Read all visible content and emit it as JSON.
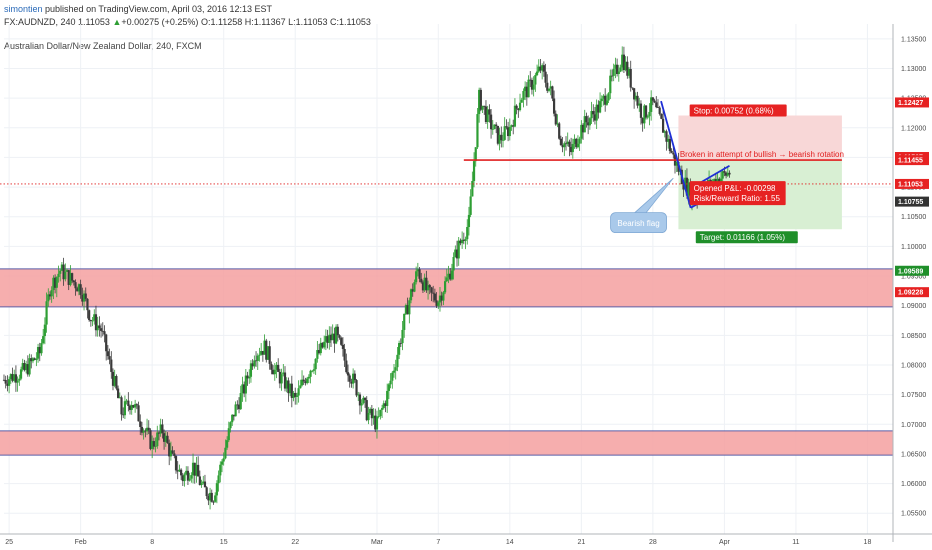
{
  "header": {
    "author": "simontien",
    "published": " published on TradingView.com, April 03, 2016 12:13 EST",
    "symbol": "FX:AUDNZD, 240",
    "last": "1.11053",
    "change_arrow": "▲",
    "change": "+0.00275 (+0.25%)",
    "ohlc": "O:1.11258 H:1.11367 L:1.11053 C:1.11053",
    "chart_title": "Australian Dollar/New Zealand Dollar, 240, FXCM"
  },
  "colors": {
    "up": "#2e9e34",
    "down": "#3a3a3a",
    "zone_fill": "#f4a0a0",
    "zone_edge": "#5b5ea6",
    "resistance": "#e02020",
    "flag": "#1f2fd6",
    "stop_fill": "#f8d7d7",
    "target_fill": "#d8efd3",
    "tag_red": "#e62222",
    "tag_green": "#1f8f2a",
    "tag_dark": "#333333",
    "callout": "#a9c9ea"
  },
  "annotations": {
    "broken_label": "Broken in attempt of bullish → bearish rotation",
    "flag_label": "Bearish flag",
    "stop_label": "Stop: 0.00752 (0.68%)",
    "pnl_label": "Opened P&L: -0.00298",
    "rr_label": "Risk/Reward Ratio: 1.55",
    "target_label": "Target: 0.01166 (1.05%)"
  },
  "chart_data": {
    "type": "candlestick",
    "title": "Australian Dollar/New Zealand Dollar, 240, FXCM",
    "ylim": [
      1.0515,
      1.1375
    ],
    "yticks": [
      "1.13500",
      "1.13000",
      "1.12500",
      "1.12000",
      "1.11500",
      "1.11000",
      "1.10500",
      "1.10000",
      "1.09500",
      "1.09000",
      "1.08500",
      "1.08000",
      "1.07500",
      "1.07000",
      "1.06500",
      "1.06000",
      "1.05500"
    ],
    "ytick_values": [
      1.135,
      1.13,
      1.125,
      1.12,
      1.115,
      1.11,
      1.105,
      1.1,
      1.095,
      1.09,
      1.085,
      1.08,
      1.075,
      1.07,
      1.065,
      1.06,
      1.055
    ],
    "xticks": [
      "25",
      "Feb",
      "8",
      "15",
      "22",
      "Mar",
      "7",
      "14",
      "21",
      "28",
      "Apr",
      "11",
      "18"
    ],
    "xtick_days": [
      -7,
      0,
      7,
      14,
      21,
      29,
      35,
      42,
      49,
      56,
      63,
      70,
      77
    ],
    "xlim_days": [
      -7.5,
      79.5
    ],
    "price_tags": [
      {
        "label": "1.12427",
        "value": 1.12427,
        "kind": "red"
      },
      {
        "label": "1.11507",
        "value": 1.11507,
        "kind": "red"
      },
      {
        "label": "1.11455",
        "value": 1.11455,
        "kind": "red"
      },
      {
        "label": "1.11053",
        "value": 1.11053,
        "kind": "red"
      },
      {
        "label": "1.10755",
        "value": 1.10755,
        "kind": "dark"
      },
      {
        "label": "1.09589",
        "value": 1.09589,
        "kind": "green"
      },
      {
        "label": "1.09228",
        "value": 1.09228,
        "kind": "red"
      }
    ],
    "zones": [
      {
        "low": 1.0898,
        "high": 1.0962
      },
      {
        "low": 1.0648,
        "high": 1.0689
      }
    ],
    "resistance": {
      "value": 1.11455,
      "day_start": 37.5,
      "day_end": 74.5
    },
    "last_price": 1.11053,
    "position": {
      "entry": 1.11455,
      "stop": 1.12207,
      "target": 1.10289,
      "day_start": 58.5,
      "day_end": 74.5
    },
    "flag": {
      "pole": [
        [
          56.8,
          1.1245
        ],
        [
          59.7,
          1.1065
        ]
      ],
      "upper": [
        [
          59.7,
          1.1098
        ],
        [
          63.5,
          1.1136
        ]
      ],
      "lower": [
        [
          59.7,
          1.1065
        ],
        [
          63.5,
          1.1102
        ]
      ]
    },
    "path": [
      [
        -7.5,
        1.0775
      ],
      [
        -5.5,
        1.079
      ],
      [
        -4,
        1.082
      ],
      [
        -3,
        1.093
      ],
      [
        -2,
        1.096
      ],
      [
        -1,
        1.0945
      ],
      [
        0,
        1.093
      ],
      [
        1,
        1.088
      ],
      [
        2,
        1.086
      ],
      [
        3,
        1.079
      ],
      [
        4,
        1.072
      ],
      [
        5,
        1.074
      ],
      [
        6,
        1.07
      ],
      [
        7,
        1.0665
      ],
      [
        8,
        1.069
      ],
      [
        9,
        1.064
      ],
      [
        10,
        1.061
      ],
      [
        11,
        1.063
      ],
      [
        12,
        1.059
      ],
      [
        13,
        1.058
      ],
      [
        14,
        1.065
      ],
      [
        15,
        1.072
      ],
      [
        16,
        1.076
      ],
      [
        17,
        1.082
      ],
      [
        18,
        1.083
      ],
      [
        19,
        1.079
      ],
      [
        20,
        1.077
      ],
      [
        21,
        1.074
      ],
      [
        22,
        1.078
      ],
      [
        23,
        1.081
      ],
      [
        24,
        1.084
      ],
      [
        25,
        1.085
      ],
      [
        26,
        1.08
      ],
      [
        27,
        1.076
      ],
      [
        28,
        1.072
      ],
      [
        29,
        1.07
      ],
      [
        30,
        1.075
      ],
      [
        31,
        1.082
      ],
      [
        32,
        1.09
      ],
      [
        33,
        1.096
      ],
      [
        34,
        1.092
      ],
      [
        35,
        1.091
      ],
      [
        36,
        1.095
      ],
      [
        37,
        1.1
      ],
      [
        38,
        1.104
      ],
      [
        39,
        1.125
      ],
      [
        40,
        1.121
      ],
      [
        41,
        1.118
      ],
      [
        42,
        1.12
      ],
      [
        43,
        1.125
      ],
      [
        44,
        1.127
      ],
      [
        45,
        1.13
      ],
      [
        46,
        1.126
      ],
      [
        47,
        1.118
      ],
      [
        48,
        1.116
      ],
      [
        49,
        1.12
      ],
      [
        50,
        1.122
      ],
      [
        51,
        1.124
      ],
      [
        52,
        1.128
      ],
      [
        53,
        1.132
      ],
      [
        54,
        1.127
      ],
      [
        55,
        1.122
      ],
      [
        56,
        1.124
      ],
      [
        57,
        1.12
      ],
      [
        58,
        1.115
      ],
      [
        59,
        1.111
      ],
      [
        60,
        1.108
      ],
      [
        61,
        1.1095
      ],
      [
        62,
        1.111
      ],
      [
        63.5,
        1.1125
      ]
    ]
  }
}
